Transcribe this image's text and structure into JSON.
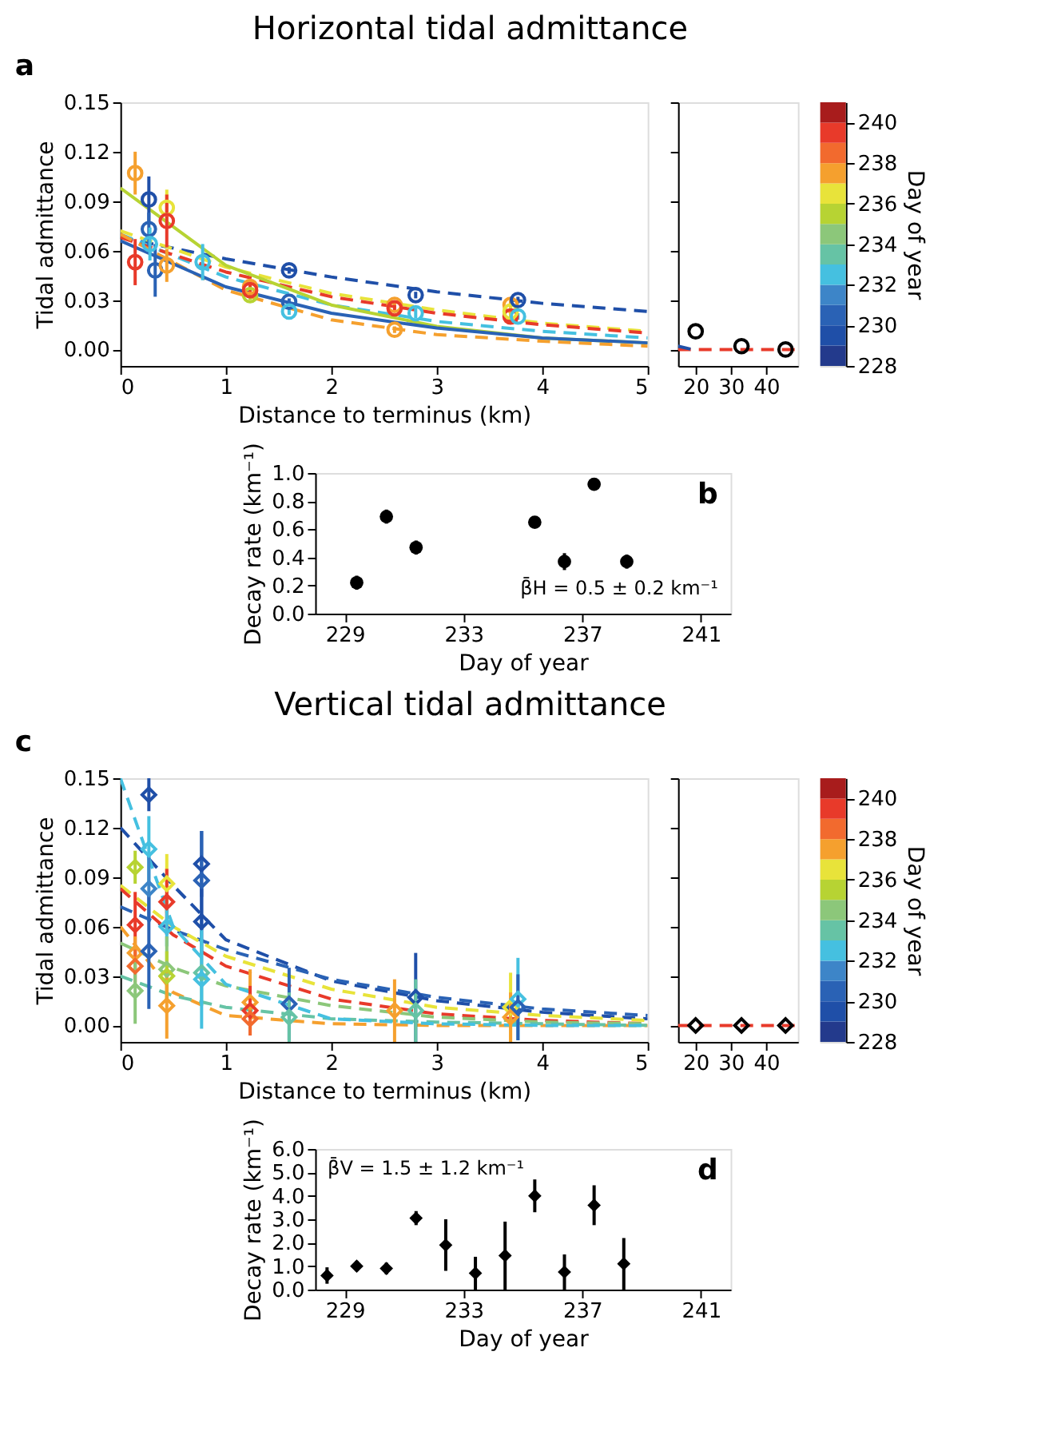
{
  "chart_data": [
    {
      "type": "scatter",
      "title": "Horizontal tidal admittance",
      "xlabel": "Distance to terminus (km)",
      "ylabel": "Tidal admittance",
      "annotations": [
        "a"
      ],
      "clabel": "Day of year",
      "clim": [
        228,
        241
      ],
      "cticks": [
        228,
        230,
        232,
        234,
        236,
        238,
        240
      ],
      "xlim": [
        0,
        5
      ],
      "xticks": [
        0,
        1,
        2,
        3,
        4,
        5
      ],
      "ylim": [
        -0.01,
        0.15
      ],
      "yticks": [
        {
          "value": 0,
          "label": "0.00"
        },
        0.03,
        0.06,
        0.09,
        0.12,
        0.15
      ],
      "series": [
        {
          "marker": "circle",
          "x": [
            0.14,
            0.14,
            0.27,
            0.27,
            0.28,
            0.33,
            0.44,
            0.44,
            0.44,
            0.78,
            1.23,
            1.23,
            1.23,
            1.6,
            1.6,
            1.6,
            2.6,
            2.6,
            2.6,
            2.8,
            2.8,
            3.7,
            3.7,
            3.7,
            3.77,
            3.77
          ],
          "values": [
            0.107,
            0.053,
            0.091,
            0.073,
            0.064,
            0.048,
            0.086,
            0.078,
            0.051,
            0.053,
            0.033,
            0.038,
            0.036,
            0.048,
            0.029,
            0.023,
            0.027,
            0.025,
            0.012,
            0.033,
            0.022,
            0.027,
            0.02,
            0.023,
            0.03,
            0.02
          ],
          "colors": [
            "#f5a02e",
            "#e83a2a",
            "#1f4fa8",
            "#2a62b5",
            "#45c0e0",
            "#2a62b5",
            "#e8e33a",
            "#e83a2a",
            "#f5a02e",
            "#45c0e0",
            "#b7d333",
            "#f5a02e",
            "#e83a2a",
            "#1f4fa8",
            "#2a62b5",
            "#45c0e0",
            "#f5a02e",
            "#e83a2a",
            "#f5a02e",
            "#1f4fa8",
            "#45c0e0",
            "#f5a02e",
            "#e83a2a",
            "#e8e33a",
            "#1f4fa8",
            "#45c0e0"
          ],
          "errors": [
            0.013,
            0.014,
            0.014,
            0.01,
            0.01,
            0.016,
            0.011,
            0.016,
            0.01,
            0.011,
            0.003,
            0.003,
            0.003,
            0.002,
            0.002,
            0.002,
            0.002,
            0.002,
            0.002,
            0.002,
            0.003,
            0.003,
            0.003,
            0.003,
            0.002,
            0.002
          ]
        },
        {
          "type": "line",
          "line_style": "dashed",
          "color": "#1f4fa8",
          "x": [
            0,
            1,
            2,
            3,
            4,
            5
          ],
          "values": [
            0.068,
            0.055,
            0.044,
            0.035,
            0.028,
            0.023
          ]
        },
        {
          "type": "line",
          "line_style": "dashed",
          "color": "#45c0e0",
          "x": [
            0,
            1,
            2,
            3,
            4,
            5
          ],
          "values": [
            0.07,
            0.044,
            0.027,
            0.017,
            0.011,
            0.007
          ]
        },
        {
          "type": "line",
          "line_style": "dashed",
          "color": "#e8e33a",
          "x": [
            0,
            1,
            2,
            3,
            4,
            5
          ],
          "values": [
            0.072,
            0.05,
            0.034,
            0.024,
            0.016,
            0.011
          ]
        },
        {
          "type": "line",
          "line_style": "dashed",
          "color": "#e83a2a",
          "x": [
            0,
            1,
            2,
            3,
            4,
            5
          ],
          "values": [
            0.068,
            0.047,
            0.032,
            0.022,
            0.015,
            0.01
          ]
        },
        {
          "type": "line",
          "line_style": "dashed",
          "color": "#f5a02e",
          "x": [
            0,
            1,
            2,
            3,
            4,
            5
          ],
          "values": [
            0.07,
            0.036,
            0.018,
            0.009,
            0.005,
            0.002
          ]
        },
        {
          "type": "line",
          "line_style": "solid",
          "color": "#b7d333",
          "x": [
            0,
            1,
            2,
            3,
            4,
            5
          ],
          "values": [
            0.098,
            0.051,
            0.027,
            0.014,
            0.007,
            0.004
          ]
        },
        {
          "type": "line",
          "line_style": "solid",
          "color": "#2a62b5",
          "x": [
            0,
            1,
            2,
            3,
            4,
            5
          ],
          "values": [
            0.066,
            0.038,
            0.022,
            0.013,
            0.007,
            0.004
          ]
        }
      ]
    },
    {
      "type": "scatter",
      "tick_labels": "x",
      "xlim": [
        15,
        49
      ],
      "xticks": [
        20,
        30,
        40
      ],
      "ylim": [
        -0.01,
        0.15
      ],
      "yticks": [
        0,
        0.03,
        0.06,
        0.09,
        0.12,
        0.15
      ],
      "series": [
        {
          "type": "line",
          "line_style": "dashed",
          "color": "#e83a2a",
          "x": [
            15,
            49
          ],
          "values": [
            0,
            0
          ]
        },
        {
          "type": "line",
          "line_style": "dashed",
          "color": "#1f4fa8",
          "x": [
            15,
            19
          ],
          "values": [
            0.002,
            0
          ]
        },
        {
          "marker": "circle",
          "color": "#000000",
          "x": [
            20,
            33,
            45.5
          ],
          "values": [
            0.011,
            0.002,
            0
          ]
        }
      ]
    },
    {
      "type": "scatter",
      "xlabel": "Day of year",
      "ylabel": "Decay rate (km⁻¹)",
      "annotations": [
        "b",
        "β̄H = 0.5 ± 0.2 km⁻¹"
      ],
      "xlim": [
        228,
        242
      ],
      "xticks": [
        229,
        233,
        237,
        241
      ],
      "ylim": [
        0,
        1
      ],
      "yticks": [
        {
          "value": 0,
          "label": "0.0"
        },
        0.2,
        0.4,
        0.6,
        0.8,
        {
          "value": 1,
          "label": "1.0"
        }
      ],
      "series": [
        {
          "marker": "circle",
          "color": "#000000",
          "x": [
            229.4,
            230.4,
            231.4,
            235.4,
            236.4,
            237.4,
            238.5
          ],
          "values": [
            0.22,
            0.69,
            0.47,
            0.65,
            0.37,
            0.92,
            0.37
          ],
          "errors": [
            0.05,
            0.05,
            0.05,
            0.04,
            0.06,
            0.04,
            0.05
          ]
        }
      ]
    },
    {
      "type": "scatter",
      "title": "Vertical tidal admittance",
      "xlabel": "Distance to terminus (km)",
      "ylabel": "Tidal admittance",
      "annotations": [
        "c"
      ],
      "clabel": "Day of year",
      "clim": [
        228,
        241
      ],
      "cticks": [
        228,
        230,
        232,
        234,
        236,
        238,
        240
      ],
      "xlim": [
        0,
        5
      ],
      "xticks": [
        0,
        1,
        2,
        3,
        4,
        5
      ],
      "ylim": [
        -0.01,
        0.15
      ],
      "yticks": [
        {
          "value": 0,
          "label": "0.00"
        },
        0.03,
        0.06,
        0.09,
        0.12,
        0.15
      ],
      "series": [
        {
          "marker": "diamond",
          "x": [
            0.14,
            0.14,
            0.14,
            0.14,
            0.14,
            0.27,
            0.27,
            0.27,
            0.27,
            0.44,
            0.44,
            0.44,
            0.44,
            0.44,
            0.44,
            0.77,
            0.77,
            0.77,
            0.77,
            0.77,
            1.23,
            1.23,
            1.23,
            1.6,
            1.6,
            2.6,
            2.8,
            2.8,
            3.7,
            3.7,
            3.77,
            3.77
          ],
          "values": [
            0.061,
            0.096,
            0.044,
            0.036,
            0.021,
            0.14,
            0.107,
            0.083,
            0.045,
            0.086,
            0.075,
            0.06,
            0.034,
            0.03,
            0.012,
            0.098,
            0.088,
            0.063,
            0.032,
            0.028,
            0.014,
            0.009,
            0.004,
            0.013,
            0.005,
            0.009,
            0.017,
            0.009,
            0.011,
            0.005,
            0.016,
            0.011
          ],
          "colors": [
            "#e83a2a",
            "#b7d333",
            "#f5a02e",
            "#f26a2e",
            "#8cc77a",
            "#1f4fa8",
            "#45c0e0",
            "#3d85c8",
            "#2a62b5",
            "#e8e33a",
            "#e83a2a",
            "#45c0e0",
            "#8cc77a",
            "#b7d333",
            "#f5a02e",
            "#1f4fa8",
            "#2a62b5",
            "#1f4fa8",
            "#66c3a5",
            "#45c0e0",
            "#f5a02e",
            "#e83a2a",
            "#f26a2e",
            "#2a62b5",
            "#66c3a5",
            "#f5a02e",
            "#1f4fa8",
            "#66c3a5",
            "#e8e33a",
            "#f5a02e",
            "#45c0e0",
            "#2a62b5"
          ],
          "errors": [
            0.02,
            0.01,
            0.01,
            0.01,
            0.02,
            0.01,
            0.02,
            0.02,
            0.035,
            0.018,
            0.02,
            0.012,
            0.02,
            0.015,
            0.02,
            0.02,
            0.03,
            0.02,
            0.02,
            0.03,
            0.02,
            0.015,
            0.01,
            0.022,
            0.015,
            0.019,
            0.027,
            0.019,
            0.021,
            0.015,
            0.025,
            0.02
          ]
        },
        {
          "type": "line",
          "line_style": "dashed",
          "color": "#1f4fa8",
          "x": [
            0,
            0.5,
            1,
            2,
            3,
            4,
            5
          ],
          "values": [
            0.12,
            0.085,
            0.052,
            0.027,
            0.015,
            0.008,
            0.004
          ]
        },
        {
          "type": "line",
          "line_style": "dashed",
          "color": "#2a62b5",
          "x": [
            0,
            0.5,
            1,
            2,
            3,
            4,
            5
          ],
          "values": [
            0.072,
            0.058,
            0.046,
            0.028,
            0.017,
            0.01,
            0.006
          ]
        },
        {
          "type": "line",
          "line_style": "dashed",
          "color": "#e8e33a",
          "x": [
            0,
            0.5,
            1,
            2,
            3,
            4,
            5
          ],
          "values": [
            0.085,
            0.06,
            0.042,
            0.022,
            0.011,
            0.006,
            0.003
          ]
        },
        {
          "type": "line",
          "line_style": "dashed",
          "color": "#e83a2a",
          "x": [
            0,
            0.5,
            1,
            2,
            3,
            4,
            5
          ],
          "values": [
            0.083,
            0.055,
            0.036,
            0.016,
            0.007,
            0.003,
            0.001
          ]
        },
        {
          "type": "line",
          "line_style": "dashed",
          "color": "#8cc77a",
          "x": [
            0,
            0.5,
            1,
            2,
            3,
            4,
            5
          ],
          "values": [
            0.05,
            0.035,
            0.024,
            0.012,
            0.005,
            0.002,
            0.001
          ]
        },
        {
          "type": "line",
          "line_style": "dashed",
          "color": "#f5a02e",
          "x": [
            0,
            0.5,
            1,
            2,
            3,
            4,
            5
          ],
          "values": [
            0.06,
            0.02,
            0.006,
            0.001,
            0,
            0,
            0
          ]
        },
        {
          "type": "line",
          "line_style": "dashed",
          "color": "#66c3a5",
          "x": [
            0,
            0.5,
            1,
            2,
            3,
            4,
            5
          ],
          "values": [
            0.03,
            0.018,
            0.011,
            0.004,
            0.002,
            0.001,
            0
          ]
        },
        {
          "type": "line",
          "line_style": "dashed",
          "color": "#45c0e0",
          "x": [
            0,
            0.5,
            1,
            2,
            3,
            4,
            5
          ],
          "values": [
            0.15,
            0.06,
            0.025,
            0.004,
            0.001,
            0,
            0
          ]
        }
      ]
    },
    {
      "type": "scatter",
      "tick_labels": "x",
      "xlim": [
        15,
        49
      ],
      "xticks": [
        20,
        30,
        40
      ],
      "ylim": [
        -0.01,
        0.15
      ],
      "yticks": [
        0,
        0.03,
        0.06,
        0.09,
        0.12,
        0.15
      ],
      "series": [
        {
          "type": "line",
          "line_style": "dashed",
          "color": "#e83a2a",
          "x": [
            15,
            49
          ],
          "values": [
            0,
            0
          ]
        },
        {
          "marker": "diamond",
          "color": "#000000",
          "x": [
            20,
            33,
            45.5
          ],
          "values": [
            0,
            0,
            0
          ]
        }
      ]
    },
    {
      "type": "scatter",
      "xlabel": "Day of year",
      "ylabel": "Decay rate (km⁻¹)",
      "annotations": [
        "β̄V = 1.5 ± 1.2 km⁻¹",
        "d"
      ],
      "xlim": [
        228,
        242
      ],
      "xticks": [
        229,
        233,
        237,
        241
      ],
      "ylim": [
        0,
        6
      ],
      "yticks": [
        {
          "value": 0,
          "label": "0.0"
        },
        {
          "value": 1,
          "label": "1.0"
        },
        {
          "value": 2,
          "label": "2.0"
        },
        {
          "value": 3,
          "label": "3.0"
        },
        {
          "value": 4,
          "label": "4.0"
        },
        {
          "value": 5,
          "label": "5.0"
        },
        {
          "value": 6,
          "label": "6.0"
        }
      ],
      "series": [
        {
          "marker": "diamond",
          "color": "#000000",
          "x": [
            228.4,
            229.4,
            230.4,
            231.4,
            232.4,
            233.4,
            234.4,
            235.4,
            236.4,
            237.4,
            238.4
          ],
          "values": [
            0.6,
            1.0,
            0.9,
            3.05,
            1.9,
            0.7,
            1.45,
            4.0,
            0.75,
            3.6,
            1.1
          ],
          "errors": [
            0.35,
            0.22,
            0.25,
            0.3,
            1.1,
            0.7,
            1.45,
            0.7,
            0.75,
            0.85,
            1.1
          ]
        }
      ]
    }
  ]
}
